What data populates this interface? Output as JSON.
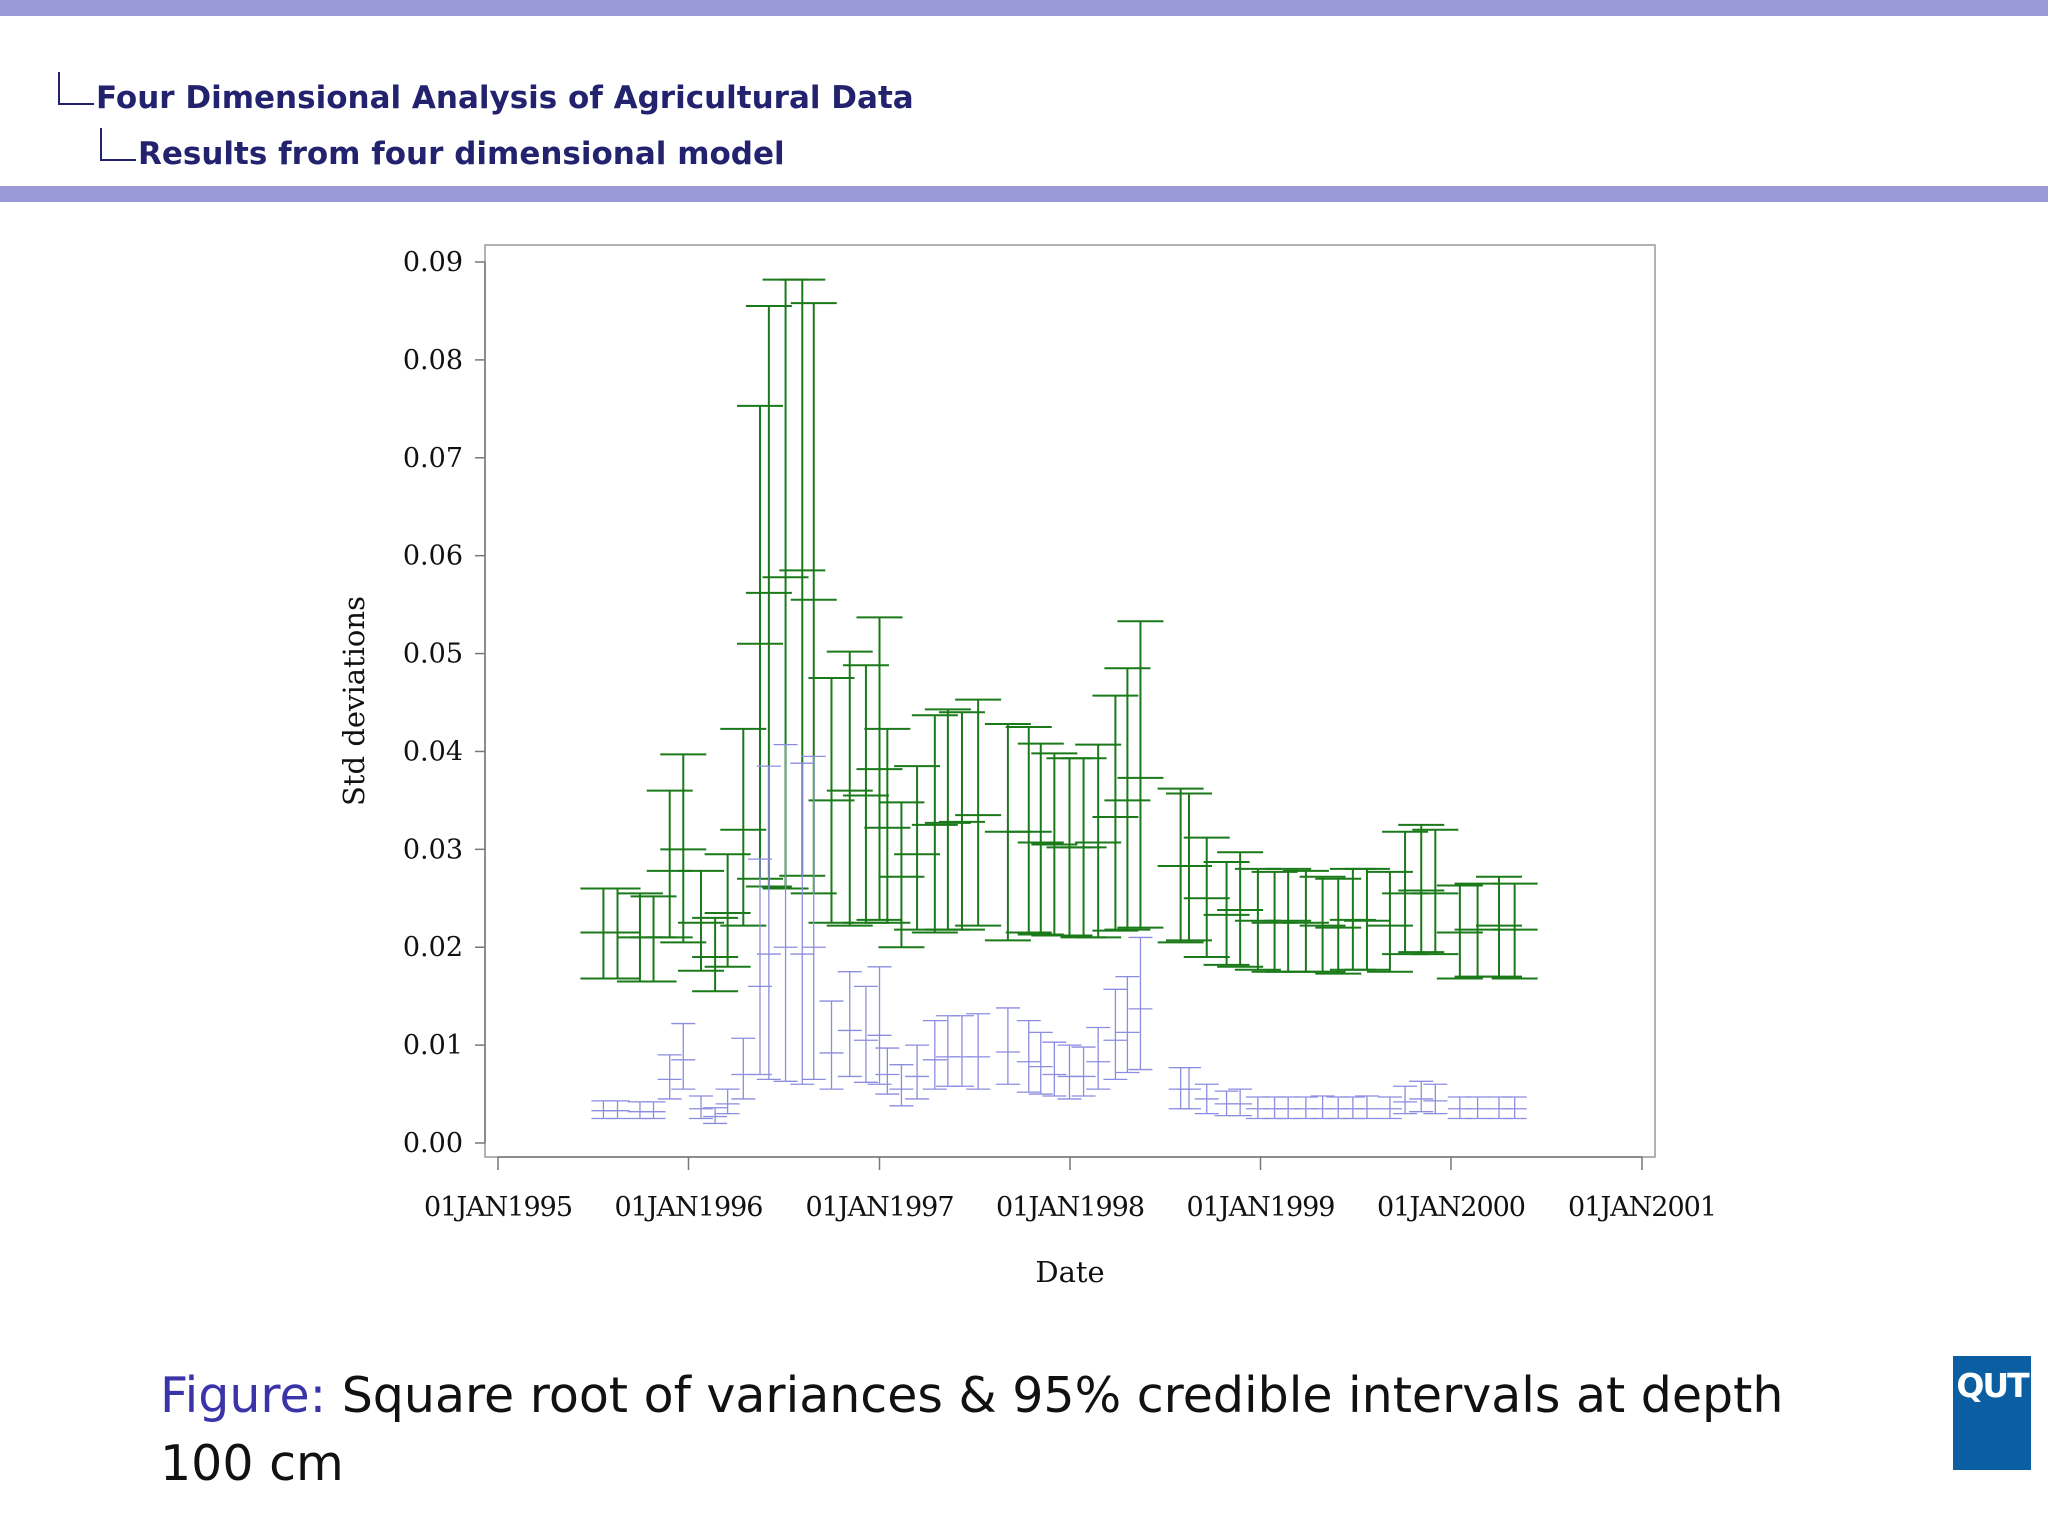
{
  "header": {
    "section": "Four Dimensional Analysis of Agricultural Data",
    "subsection": "Results from four dimensional model"
  },
  "caption": {
    "label": "Figure:",
    "text": "Square root of variances & 95% credible intervals at depth 100 cm"
  },
  "logo": {
    "text": "QUT",
    "color": "#0b5ea1"
  },
  "colors": {
    "accent_bar": "#9a9ad8",
    "series1": "#1a7a1a",
    "series2": "#8c8ce0"
  },
  "chart_data": {
    "type": "errorbar",
    "xlabel": "Date",
    "ylabel": "Std deviations",
    "x_scale": "date",
    "xlim": [
      "1995-01-01",
      "2001-01-01"
    ],
    "ylim": [
      0.0,
      0.09
    ],
    "x_ticks": [
      "1995-01-01",
      "1996-01-01",
      "1997-01-01",
      "1998-01-01",
      "1999-01-01",
      "2000-01-01",
      "2001-01-01"
    ],
    "x_tick_labels": [
      "01JAN1995",
      "01JAN1996",
      "01JAN1997",
      "01JAN1998",
      "01JAN1999",
      "01JAN2000",
      "01JAN2001"
    ],
    "y_ticks": [
      0.0,
      0.01,
      0.02,
      0.03,
      0.04,
      0.05,
      0.06,
      0.07,
      0.08,
      0.09
    ],
    "y_tick_labels": [
      "0.00",
      "0.01",
      "0.02",
      "0.03",
      "0.04",
      "0.05",
      "0.06",
      "0.07",
      "0.08",
      "0.09"
    ],
    "grid": false,
    "series": [
      {
        "color": "#1a7a1a",
        "points": [
          {
            "x": "1995-07-22",
            "lo": 0.0168,
            "mid": 0.0215,
            "hi": 0.026
          },
          {
            "x": "1995-08-18",
            "lo": 0.0168,
            "mid": 0.0215,
            "hi": 0.026
          },
          {
            "x": "1995-09-30",
            "lo": 0.0165,
            "mid": 0.021,
            "hi": 0.0255
          },
          {
            "x": "1995-10-26",
            "lo": 0.0165,
            "mid": 0.021,
            "hi": 0.0252
          },
          {
            "x": "1995-11-26",
            "lo": 0.021,
            "mid": 0.0278,
            "hi": 0.036
          },
          {
            "x": "1995-12-22",
            "lo": 0.0205,
            "mid": 0.03,
            "hi": 0.0397
          },
          {
            "x": "1996-01-25",
            "lo": 0.0176,
            "mid": 0.0225,
            "hi": 0.0278
          },
          {
            "x": "1996-02-21",
            "lo": 0.0155,
            "mid": 0.019,
            "hi": 0.023
          },
          {
            "x": "1996-03-16",
            "lo": 0.018,
            "mid": 0.0235,
            "hi": 0.0295
          },
          {
            "x": "1996-04-15",
            "lo": 0.0222,
            "mid": 0.032,
            "hi": 0.0423
          },
          {
            "x": "1996-05-17",
            "lo": 0.027,
            "mid": 0.051,
            "hi": 0.0753
          },
          {
            "x": "1996-06-03",
            "lo": 0.0262,
            "mid": 0.0562,
            "hi": 0.0855
          },
          {
            "x": "1996-07-05",
            "lo": 0.026,
            "mid": 0.0578,
            "hi": 0.0882
          },
          {
            "x": "1996-08-06",
            "lo": 0.0273,
            "mid": 0.0585,
            "hi": 0.0882
          },
          {
            "x": "1996-08-28",
            "lo": 0.0255,
            "mid": 0.0555,
            "hi": 0.0858
          },
          {
            "x": "1996-10-01",
            "lo": 0.0225,
            "mid": 0.035,
            "hi": 0.0475
          },
          {
            "x": "1996-11-05",
            "lo": 0.0222,
            "mid": 0.036,
            "hi": 0.0502
          },
          {
            "x": "1996-12-06",
            "lo": 0.0225,
            "mid": 0.0355,
            "hi": 0.0488
          },
          {
            "x": "1997-01-01",
            "lo": 0.0228,
            "mid": 0.0382,
            "hi": 0.0537
          },
          {
            "x": "1997-01-16",
            "lo": 0.0225,
            "mid": 0.0322,
            "hi": 0.0423
          },
          {
            "x": "1997-02-12",
            "lo": 0.02,
            "mid": 0.0272,
            "hi": 0.0348
          },
          {
            "x": "1997-03-14",
            "lo": 0.0218,
            "mid": 0.0295,
            "hi": 0.0385
          },
          {
            "x": "1997-04-17",
            "lo": 0.0215,
            "mid": 0.0325,
            "hi": 0.0437
          },
          {
            "x": "1997-05-12",
            "lo": 0.0218,
            "mid": 0.0327,
            "hi": 0.0443
          },
          {
            "x": "1997-06-08",
            "lo": 0.0218,
            "mid": 0.0328,
            "hi": 0.044
          },
          {
            "x": "1997-07-09",
            "lo": 0.0222,
            "mid": 0.0335,
            "hi": 0.0453
          },
          {
            "x": "1997-09-04",
            "lo": 0.0207,
            "mid": 0.0318,
            "hi": 0.0428
          },
          {
            "x": "1997-10-14",
            "lo": 0.0215,
            "mid": 0.0318,
            "hi": 0.0425
          },
          {
            "x": "1997-11-06",
            "lo": 0.0213,
            "mid": 0.0307,
            "hi": 0.0408
          },
          {
            "x": "1997-12-02",
            "lo": 0.0212,
            "mid": 0.0305,
            "hi": 0.0398
          },
          {
            "x": "1997-12-31",
            "lo": 0.0212,
            "mid": 0.0302,
            "hi": 0.0393
          },
          {
            "x": "1998-01-27",
            "lo": 0.021,
            "mid": 0.0302,
            "hi": 0.0393
          },
          {
            "x": "1998-02-24",
            "lo": 0.021,
            "mid": 0.0307,
            "hi": 0.0407
          },
          {
            "x": "1998-03-29",
            "lo": 0.0217,
            "mid": 0.0333,
            "hi": 0.0457
          },
          {
            "x": "1998-04-21",
            "lo": 0.0218,
            "mid": 0.035,
            "hi": 0.0485
          },
          {
            "x": "1998-05-16",
            "lo": 0.022,
            "mid": 0.0373,
            "hi": 0.0533
          },
          {
            "x": "1998-08-01",
            "lo": 0.0205,
            "mid": 0.0283,
            "hi": 0.0362
          },
          {
            "x": "1998-08-17",
            "lo": 0.0207,
            "mid": 0.0283,
            "hi": 0.0357
          },
          {
            "x": "1998-09-20",
            "lo": 0.019,
            "mid": 0.025,
            "hi": 0.0312
          },
          {
            "x": "1998-10-28",
            "lo": 0.0182,
            "mid": 0.0233,
            "hi": 0.0287
          },
          {
            "x": "1998-11-23",
            "lo": 0.018,
            "mid": 0.0238,
            "hi": 0.0297
          },
          {
            "x": "1998-12-27",
            "lo": 0.0177,
            "mid": 0.0227,
            "hi": 0.028
          },
          {
            "x": "1999-01-28",
            "lo": 0.0175,
            "mid": 0.0225,
            "hi": 0.0277
          },
          {
            "x": "1999-02-23",
            "lo": 0.0175,
            "mid": 0.0227,
            "hi": 0.028
          },
          {
            "x": "1999-03-29",
            "lo": 0.0175,
            "mid": 0.0225,
            "hi": 0.0278
          },
          {
            "x": "1999-04-30",
            "lo": 0.0175,
            "mid": 0.0222,
            "hi": 0.0272
          },
          {
            "x": "1999-05-30",
            "lo": 0.0173,
            "mid": 0.022,
            "hi": 0.027
          },
          {
            "x": "1999-06-27",
            "lo": 0.0177,
            "mid": 0.0228,
            "hi": 0.028
          },
          {
            "x": "1999-07-24",
            "lo": 0.0177,
            "mid": 0.0227,
            "hi": 0.028
          },
          {
            "x": "1999-09-06",
            "lo": 0.0175,
            "mid": 0.0222,
            "hi": 0.0277
          },
          {
            "x": "1999-10-05",
            "lo": 0.0193,
            "mid": 0.0255,
            "hi": 0.0318
          },
          {
            "x": "1999-11-05",
            "lo": 0.0195,
            "mid": 0.0258,
            "hi": 0.0325
          },
          {
            "x": "1999-12-02",
            "lo": 0.0193,
            "mid": 0.0255,
            "hi": 0.032
          },
          {
            "x": "2000-01-18",
            "lo": 0.0168,
            "mid": 0.0215,
            "hi": 0.0263
          },
          {
            "x": "2000-02-21",
            "lo": 0.017,
            "mid": 0.0218,
            "hi": 0.0265
          },
          {
            "x": "2000-04-02",
            "lo": 0.017,
            "mid": 0.0222,
            "hi": 0.0272
          },
          {
            "x": "2000-05-02",
            "lo": 0.0168,
            "mid": 0.0218,
            "hi": 0.0265
          }
        ]
      },
      {
        "color": "#8c8ce0",
        "points": [
          {
            "x": "1995-07-22",
            "lo": 0.0025,
            "mid": 0.0033,
            "hi": 0.0043
          },
          {
            "x": "1995-08-18",
            "lo": 0.0025,
            "mid": 0.0033,
            "hi": 0.0043
          },
          {
            "x": "1995-09-30",
            "lo": 0.0025,
            "mid": 0.0032,
            "hi": 0.0042
          },
          {
            "x": "1995-10-26",
            "lo": 0.0025,
            "mid": 0.0032,
            "hi": 0.0042
          },
          {
            "x": "1995-11-26",
            "lo": 0.0045,
            "mid": 0.0065,
            "hi": 0.009
          },
          {
            "x": "1995-12-22",
            "lo": 0.0055,
            "mid": 0.0085,
            "hi": 0.0122
          },
          {
            "x": "1996-01-25",
            "lo": 0.0025,
            "mid": 0.0035,
            "hi": 0.0048
          },
          {
            "x": "1996-02-21",
            "lo": 0.002,
            "mid": 0.0027,
            "hi": 0.0036
          },
          {
            "x": "1996-03-16",
            "lo": 0.003,
            "mid": 0.004,
            "hi": 0.0055
          },
          {
            "x": "1996-04-15",
            "lo": 0.0045,
            "mid": 0.007,
            "hi": 0.0107
          },
          {
            "x": "1996-05-17",
            "lo": 0.007,
            "mid": 0.016,
            "hi": 0.029
          },
          {
            "x": "1996-06-03",
            "lo": 0.0065,
            "mid": 0.0193,
            "hi": 0.0385
          },
          {
            "x": "1996-07-05",
            "lo": 0.0063,
            "mid": 0.02,
            "hi": 0.0407
          },
          {
            "x": "1996-08-06",
            "lo": 0.006,
            "mid": 0.0193,
            "hi": 0.0388
          },
          {
            "x": "1996-08-28",
            "lo": 0.0065,
            "mid": 0.02,
            "hi": 0.0395
          },
          {
            "x": "1996-10-01",
            "lo": 0.0055,
            "mid": 0.0092,
            "hi": 0.0145
          },
          {
            "x": "1996-11-05",
            "lo": 0.0068,
            "mid": 0.0115,
            "hi": 0.0175
          },
          {
            "x": "1996-12-06",
            "lo": 0.0062,
            "mid": 0.0105,
            "hi": 0.016
          },
          {
            "x": "1997-01-01",
            "lo": 0.006,
            "mid": 0.011,
            "hi": 0.018
          },
          {
            "x": "1997-01-16",
            "lo": 0.005,
            "mid": 0.007,
            "hi": 0.0097
          },
          {
            "x": "1997-02-12",
            "lo": 0.0038,
            "mid": 0.0055,
            "hi": 0.008
          },
          {
            "x": "1997-03-14",
            "lo": 0.0045,
            "mid": 0.0068,
            "hi": 0.01
          },
          {
            "x": "1997-04-17",
            "lo": 0.0055,
            "mid": 0.0085,
            "hi": 0.0125
          },
          {
            "x": "1997-05-12",
            "lo": 0.0058,
            "mid": 0.0088,
            "hi": 0.013
          },
          {
            "x": "1997-06-08",
            "lo": 0.0058,
            "mid": 0.0088,
            "hi": 0.013
          },
          {
            "x": "1997-07-09",
            "lo": 0.0055,
            "mid": 0.0088,
            "hi": 0.0132
          },
          {
            "x": "1997-09-04",
            "lo": 0.006,
            "mid": 0.0093,
            "hi": 0.0138
          },
          {
            "x": "1997-10-14",
            "lo": 0.0052,
            "mid": 0.0083,
            "hi": 0.0125
          },
          {
            "x": "1997-11-06",
            "lo": 0.005,
            "mid": 0.0078,
            "hi": 0.0113
          },
          {
            "x": "1997-12-02",
            "lo": 0.0048,
            "mid": 0.007,
            "hi": 0.0103
          },
          {
            "x": "1997-12-31",
            "lo": 0.0045,
            "mid": 0.0068,
            "hi": 0.01
          },
          {
            "x": "1998-01-27",
            "lo": 0.0048,
            "mid": 0.0068,
            "hi": 0.0098
          },
          {
            "x": "1998-02-24",
            "lo": 0.0055,
            "mid": 0.0083,
            "hi": 0.0118
          },
          {
            "x": "1998-03-29",
            "lo": 0.0065,
            "mid": 0.0105,
            "hi": 0.0157
          },
          {
            "x": "1998-04-21",
            "lo": 0.0072,
            "mid": 0.0113,
            "hi": 0.017
          },
          {
            "x": "1998-05-16",
            "lo": 0.0075,
            "mid": 0.0137,
            "hi": 0.021
          },
          {
            "x": "1998-08-01",
            "lo": 0.0035,
            "mid": 0.0055,
            "hi": 0.0077
          },
          {
            "x": "1998-08-17",
            "lo": 0.0035,
            "mid": 0.0055,
            "hi": 0.0077
          },
          {
            "x": "1998-09-20",
            "lo": 0.003,
            "mid": 0.0045,
            "hi": 0.006
          },
          {
            "x": "1998-10-28",
            "lo": 0.0028,
            "mid": 0.004,
            "hi": 0.0053
          },
          {
            "x": "1998-11-23",
            "lo": 0.0028,
            "mid": 0.004,
            "hi": 0.0055
          },
          {
            "x": "1998-12-27",
            "lo": 0.0025,
            "mid": 0.0035,
            "hi": 0.0047
          },
          {
            "x": "1999-01-28",
            "lo": 0.0025,
            "mid": 0.0035,
            "hi": 0.0047
          },
          {
            "x": "1999-02-23",
            "lo": 0.0025,
            "mid": 0.0035,
            "hi": 0.0047
          },
          {
            "x": "1999-03-29",
            "lo": 0.0025,
            "mid": 0.0035,
            "hi": 0.0047
          },
          {
            "x": "1999-04-30",
            "lo": 0.0025,
            "mid": 0.0035,
            "hi": 0.0048
          },
          {
            "x": "1999-05-30",
            "lo": 0.0025,
            "mid": 0.0035,
            "hi": 0.0047
          },
          {
            "x": "1999-06-27",
            "lo": 0.0025,
            "mid": 0.0035,
            "hi": 0.0047
          },
          {
            "x": "1999-07-24",
            "lo": 0.0025,
            "mid": 0.0035,
            "hi": 0.0048
          },
          {
            "x": "1999-09-06",
            "lo": 0.0025,
            "mid": 0.0035,
            "hi": 0.0047
          },
          {
            "x": "1999-10-05",
            "lo": 0.003,
            "mid": 0.0042,
            "hi": 0.0058
          },
          {
            "x": "1999-11-05",
            "lo": 0.0032,
            "mid": 0.0045,
            "hi": 0.0063
          },
          {
            "x": "1999-12-02",
            "lo": 0.003,
            "mid": 0.0043,
            "hi": 0.006
          },
          {
            "x": "2000-01-18",
            "lo": 0.0025,
            "mid": 0.0035,
            "hi": 0.0047
          },
          {
            "x": "2000-02-21",
            "lo": 0.0025,
            "mid": 0.0035,
            "hi": 0.0047
          },
          {
            "x": "2000-04-02",
            "lo": 0.0025,
            "mid": 0.0035,
            "hi": 0.0047
          },
          {
            "x": "2000-05-02",
            "lo": 0.0025,
            "mid": 0.0035,
            "hi": 0.0047
          }
        ]
      }
    ]
  }
}
